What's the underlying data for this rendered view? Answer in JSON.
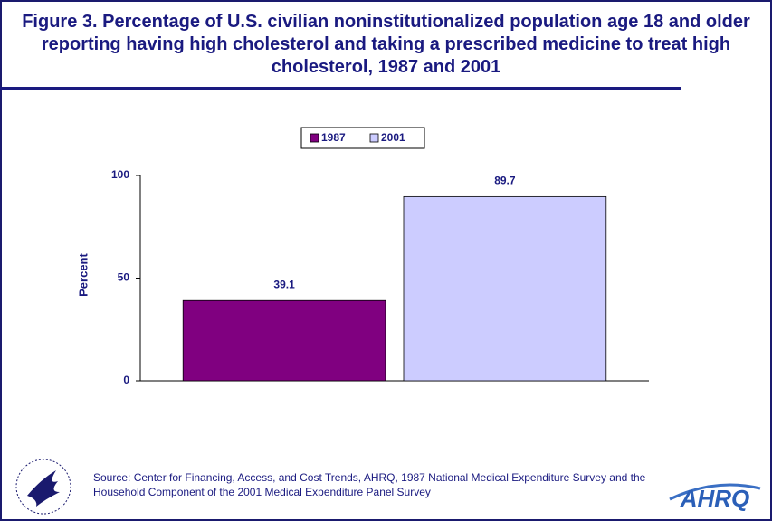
{
  "chart_data": {
    "type": "bar",
    "title": "Figure 3. Percentage of U.S. civilian noninstitutionalized population age 18 and older reporting having high cholesterol and taking a prescribed medicine to treat high cholesterol, 1987 and 2001",
    "categories": [
      null
    ],
    "series": [
      {
        "name": "1987",
        "color": "#800080",
        "values": [
          39.1
        ]
      },
      {
        "name": "2001",
        "color": "#ccccff",
        "values": [
          89.7
        ]
      }
    ],
    "y_label": "Percent",
    "ylim": [
      0,
      100
    ],
    "yticks": [
      0,
      50,
      100
    ],
    "grid": false,
    "legend": "top",
    "source": "Source: Center for Financing, Access, and Cost Trends, AHRQ, 1987 National Medical Expenditure Survey and the Household Component of the 2001 Medical Expenditure Panel Survey",
    "logo": "AHRQ"
  }
}
